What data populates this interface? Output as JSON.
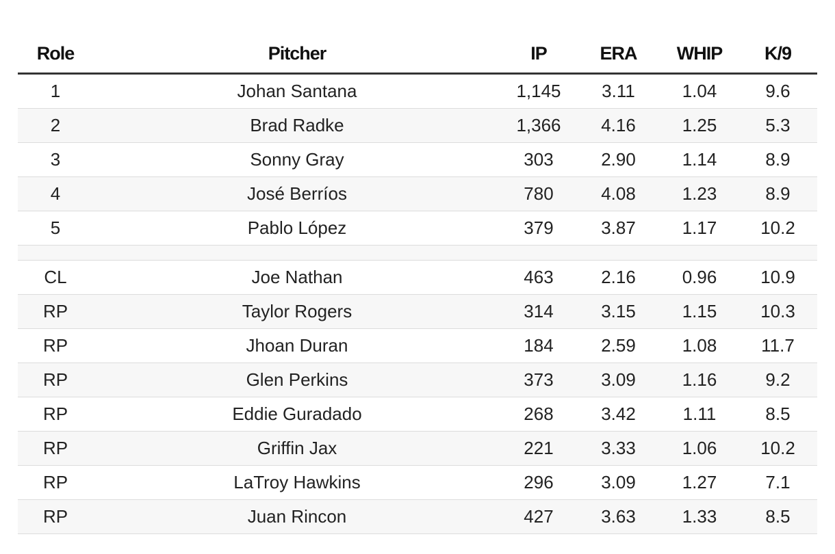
{
  "table": {
    "headers": {
      "role": "Role",
      "pitcher": "Pitcher",
      "ip": "IP",
      "era": "ERA",
      "whip": "WHIP",
      "k9": "K/9"
    },
    "rows": [
      {
        "role": "1",
        "pitcher": "Johan Santana",
        "ip": "1,145",
        "era": "3.11",
        "whip": "1.04",
        "k9": "9.6"
      },
      {
        "role": "2",
        "pitcher": "Brad Radke",
        "ip": "1,366",
        "era": "4.16",
        "whip": "1.25",
        "k9": "5.3"
      },
      {
        "role": "3",
        "pitcher": "Sonny Gray",
        "ip": "303",
        "era": "2.90",
        "whip": "1.14",
        "k9": "8.9"
      },
      {
        "role": "4",
        "pitcher": "José Berríos",
        "ip": "780",
        "era": "4.08",
        "whip": "1.23",
        "k9": "8.9"
      },
      {
        "role": "5",
        "pitcher": "Pablo López",
        "ip": "379",
        "era": "3.87",
        "whip": "1.17",
        "k9": "10.2"
      },
      {
        "role": "",
        "pitcher": "",
        "ip": "",
        "era": "",
        "whip": "",
        "k9": ""
      },
      {
        "role": "CL",
        "pitcher": "Joe Nathan",
        "ip": "463",
        "era": "2.16",
        "whip": "0.96",
        "k9": "10.9"
      },
      {
        "role": "RP",
        "pitcher": "Taylor Rogers",
        "ip": "314",
        "era": "3.15",
        "whip": "1.15",
        "k9": "10.3"
      },
      {
        "role": "RP",
        "pitcher": "Jhoan Duran",
        "ip": "184",
        "era": "2.59",
        "whip": "1.08",
        "k9": "11.7"
      },
      {
        "role": "RP",
        "pitcher": "Glen Perkins",
        "ip": "373",
        "era": "3.09",
        "whip": "1.16",
        "k9": "9.2"
      },
      {
        "role": "RP",
        "pitcher": "Eddie Guradado",
        "ip": "268",
        "era": "3.42",
        "whip": "1.11",
        "k9": "8.5"
      },
      {
        "role": "RP",
        "pitcher": "Griffin Jax",
        "ip": "221",
        "era": "3.33",
        "whip": "1.06",
        "k9": "10.2"
      },
      {
        "role": "RP",
        "pitcher": "LaTroy Hawkins",
        "ip": "296",
        "era": "3.09",
        "whip": "1.27",
        "k9": "7.1"
      },
      {
        "role": "RP",
        "pitcher": "Juan Rincon",
        "ip": "427",
        "era": "3.63",
        "whip": "1.33",
        "k9": "8.5"
      }
    ]
  },
  "colors": {
    "header_rule": "#333333",
    "row_divider": "#dcdcdc",
    "stripe": "#f7f7f7",
    "text": "#222222"
  }
}
